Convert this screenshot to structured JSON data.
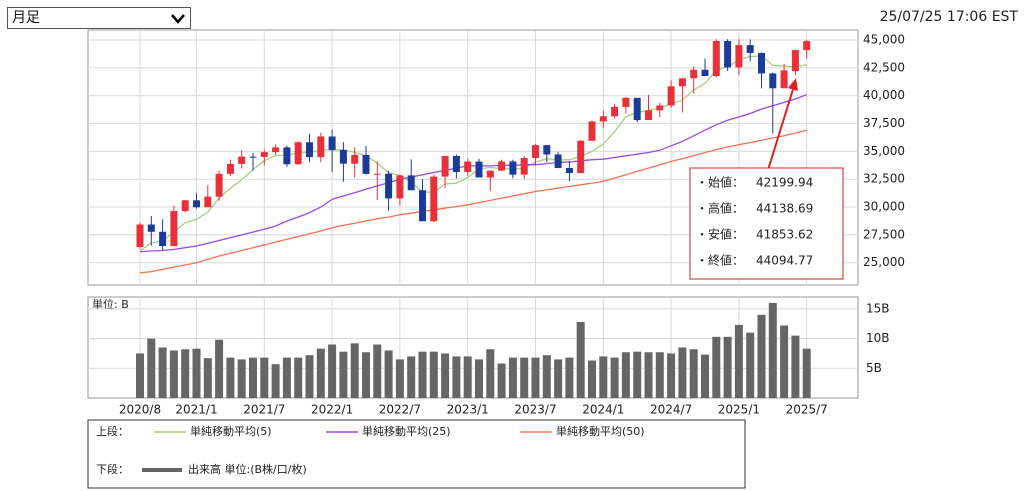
{
  "header": {
    "period": "月足",
    "timestamp": "25/07/25 17:06 EST"
  },
  "chart_data": {
    "type": "candlestick",
    "categories": [
      "2020/8",
      null,
      null,
      null,
      null,
      "2021/1",
      null,
      null,
      null,
      null,
      null,
      "2021/7",
      null,
      null,
      null,
      null,
      null,
      "2022/1",
      null,
      null,
      null,
      null,
      null,
      "2022/7",
      null,
      null,
      null,
      null,
      null,
      "2023/1",
      null,
      null,
      null,
      null,
      null,
      "2023/7",
      null,
      null,
      null,
      null,
      null,
      "2024/1",
      null,
      null,
      null,
      null,
      null,
      "2024/7",
      null,
      null,
      null,
      null,
      null,
      "2025/1",
      null,
      null,
      null,
      null,
      null,
      "2025/7"
    ],
    "open": [
      26413,
      28430,
      27782,
      26501,
      29638,
      30606,
      29983,
      30932,
      32982,
      33875,
      34529,
      34503,
      34935,
      35361,
      33844,
      35820,
      34484,
      36338,
      35132,
      33893,
      34678,
      32977,
      32990,
      30775,
      32845,
      31510,
      28726,
      32733,
      34590,
      33147,
      34086,
      32657,
      33274,
      34098,
      32908,
      34408,
      35560,
      34722,
      33508,
      33053,
      35951,
      37690,
      38150,
      38996,
      39807,
      37816,
      38686,
      39119,
      40843,
      41563,
      42330,
      41763,
      44911,
      42544,
      44545,
      43841,
      42002,
      40669,
      42199.94,
      44094
    ],
    "high": [
      28580,
      29199,
      28903,
      30117,
      30637,
      31272,
      31961,
      33259,
      34257,
      35091,
      34849,
      35171,
      35631,
      35510,
      35892,
      36566,
      36679,
      36952,
      35824,
      35372,
      35492,
      34117,
      33272,
      32910,
      34281,
      32504,
      32889,
      34595,
      34712,
      34342,
      34335,
      33274,
      34257,
      34257,
      34588,
      35679,
      35578,
      34977,
      34147,
      36025,
      37778,
      38653,
      39282,
      39889,
      39807,
      40077,
      39375,
      41376,
      41585,
      42628,
      43325,
      45074,
      45073,
      45054,
      45054,
      43883,
      42096,
      42842,
      44138.69,
      45000
    ],
    "low": [
      26229,
      26537,
      26144,
      26501,
      29512,
      29856,
      29983,
      30548,
      32785,
      33474,
      33271,
      33741,
      34688,
      33613,
      33785,
      34007,
      34007,
      33150,
      32273,
      32633,
      32913,
      30636,
      29653,
      30143,
      31510,
      28715,
      28660,
      31727,
      32573,
      32812,
      32657,
      31430,
      33235,
      32586,
      32553,
      33705,
      34030,
      33474,
      32327,
      33053,
      35951,
      37122,
      37956,
      38411,
      37612,
      37816,
      38075,
      38900,
      38499,
      40190,
      41763,
      41634,
      42232,
      41844,
      43083,
      40662,
      36612,
      40669,
      41853.62,
      43340
    ],
    "close": [
      28430,
      27782,
      26501,
      29638,
      30606,
      29983,
      30932,
      32982,
      33875,
      34529,
      34503,
      34935,
      35361,
      33844,
      35820,
      34484,
      36338,
      35132,
      33893,
      34678,
      32977,
      32990,
      30775,
      32845,
      31510,
      28726,
      32733,
      34590,
      33147,
      34086,
      32657,
      33274,
      34098,
      32908,
      34408,
      35560,
      34722,
      33508,
      33053,
      35951,
      37690,
      38150,
      38996,
      39807,
      37816,
      38686,
      39119,
      40843,
      41563,
      42330,
      41763,
      44911,
      42544,
      44545,
      43841,
      42002,
      40669,
      42270,
      44094.77,
      44901
    ],
    "up_color": "#e8303a",
    "down_color": "#1c3a9a",
    "ylim": [
      23000,
      45900
    ],
    "yticks": [
      {
        "value": 25000,
        "label": "25,000"
      },
      {
        "value": 27500,
        "label": "27,500"
      },
      {
        "value": 30000,
        "label": "30,000"
      },
      {
        "value": 32500,
        "label": "32,500"
      },
      {
        "value": 35000,
        "label": "35,000"
      },
      {
        "value": 37500,
        "label": "37,500"
      },
      {
        "value": 40000,
        "label": "40,000"
      },
      {
        "value": 42500,
        "label": "42,500"
      },
      {
        "value": 45000,
        "label": "45,000"
      }
    ],
    "grid": true,
    "series": [
      {
        "name": "単純移動平均(5)",
        "color": "#a6cf7c",
        "values": [
          26080,
          26767,
          26991,
          27756,
          28591,
          28902,
          29532,
          30828,
          31676,
          32460,
          33364,
          34165,
          34641,
          34634,
          34893,
          34889,
          35169,
          35124,
          35133,
          34905,
          34604,
          33934,
          33063,
          32853,
          32219,
          31369,
          31318,
          32081,
          32141,
          32656,
          33443,
          33551,
          33452,
          33405,
          33469,
          34050,
          34339,
          34221,
          34250,
          34559,
          34985,
          35670,
          36768,
          38119,
          38492,
          38691,
          38885,
          39254,
          39605,
          40508,
          41124,
          42282,
          42622,
          43219,
          43521,
          43569,
          42720,
          42665,
          42575,
          42787
        ]
      },
      {
        "name": "単純移動平均(25)",
        "color": "#9a4be6",
        "values": [
          26000,
          26050,
          26100,
          26200,
          26350,
          26500,
          26750,
          27000,
          27250,
          27500,
          27750,
          28000,
          28300,
          28750,
          29100,
          29500,
          30000,
          30700,
          31000,
          31300,
          31600,
          31900,
          32200,
          32500,
          32700,
          32900,
          33100,
          33300,
          33500,
          33700,
          33700,
          33700,
          33750,
          33750,
          33800,
          33800,
          33900,
          34000,
          34050,
          34150,
          34250,
          34300,
          34450,
          34600,
          34750,
          34900,
          35100,
          35500,
          35900,
          36400,
          36900,
          37400,
          37800,
          38100,
          38400,
          38800,
          39100,
          39400,
          39700,
          40100
        ]
      },
      {
        "name": "単純移動平均(50)",
        "color": "#f27454",
        "values": [
          24100,
          24200,
          24400,
          24600,
          24800,
          25000,
          25300,
          25600,
          25850,
          26100,
          26350,
          26600,
          26850,
          27100,
          27350,
          27600,
          27850,
          28150,
          28350,
          28550,
          28750,
          28950,
          29100,
          29300,
          29450,
          29600,
          29750,
          29900,
          30050,
          30200,
          30400,
          30600,
          30800,
          31000,
          31200,
          31400,
          31550,
          31700,
          31850,
          32000,
          32150,
          32300,
          32600,
          32900,
          33200,
          33500,
          33800,
          34100,
          34350,
          34600,
          34900,
          35150,
          35400,
          35600,
          35800,
          36000,
          36200,
          36400,
          36650,
          36900
        ]
      }
    ],
    "volume": {
      "unit_label": "単位: B",
      "name": "出来高 単位:(B株/口/枚)",
      "color": "#666666",
      "values": [
        7.5,
        10,
        8.5,
        8,
        8.2,
        8.3,
        6.7,
        9.8,
        6.8,
        6.5,
        6.8,
        6.8,
        5.7,
        6.8,
        6.8,
        7.2,
        8.3,
        9,
        7.8,
        9.2,
        7.7,
        9,
        8,
        6.5,
        7,
        7.8,
        7.8,
        7.5,
        7,
        7,
        6.5,
        8.2,
        5.8,
        6.8,
        6.8,
        6.8,
        7.2,
        6.5,
        6.8,
        12.8,
        6.3,
        7,
        6.8,
        7.7,
        7.8,
        7.7,
        7.7,
        7.5,
        8.5,
        8.2,
        7.3,
        10.3,
        10.3,
        12.3,
        11,
        14,
        16,
        12.2,
        10.5,
        8.3
      ],
      "ylim": [
        0,
        17
      ],
      "yticks": [
        {
          "value": 5,
          "label": "5B"
        },
        {
          "value": 10,
          "label": "10B"
        },
        {
          "value": 15,
          "label": "15B"
        }
      ]
    },
    "legend": {
      "upper": "上段：",
      "lower": "下段："
    },
    "tooltip": {
      "labels": [
        "・始値：",
        "・高値：",
        "・安値：",
        "・終値："
      ]
    }
  }
}
